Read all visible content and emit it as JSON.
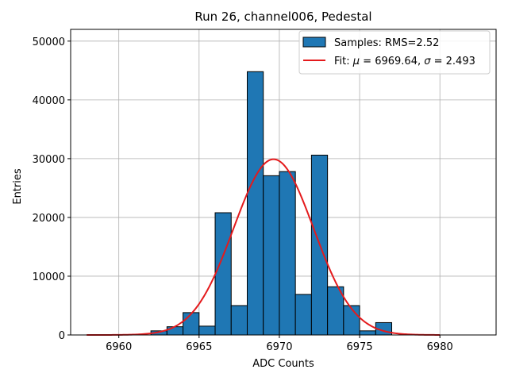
{
  "chart_data": {
    "type": "bar",
    "title": "Run 26, channel006, Pedestal",
    "xlabel": "ADC Counts",
    "ylabel": "Entries",
    "xlim": [
      6957.0,
      6983.5
    ],
    "ylim": [
      0,
      52000
    ],
    "xticks": [
      6960,
      6965,
      6970,
      6975,
      6980
    ],
    "yticks": [
      0,
      10000,
      20000,
      30000,
      40000,
      50000
    ],
    "xtick_labels": [
      "6960",
      "6965",
      "6970",
      "6975",
      "6980"
    ],
    "ytick_labels": [
      "0",
      "10000",
      "20000",
      "30000",
      "40000",
      "50000"
    ],
    "grid": true,
    "legend_position": "top-right",
    "bars": {
      "name": "Samples: RMS=2.52",
      "color": "#1f77b4",
      "bin_width": 1,
      "bins": [
        {
          "x": 6962,
          "value": 700
        },
        {
          "x": 6963,
          "value": 1400
        },
        {
          "x": 6964,
          "value": 3800
        },
        {
          "x": 6965,
          "value": 1500
        },
        {
          "x": 6966,
          "value": 20800
        },
        {
          "x": 6967,
          "value": 5000
        },
        {
          "x": 6968,
          "value": 44800
        },
        {
          "x": 6969,
          "value": 27100
        },
        {
          "x": 6970,
          "value": 27800
        },
        {
          "x": 6971,
          "value": 6900
        },
        {
          "x": 6972,
          "value": 30600
        },
        {
          "x": 6973,
          "value": 8200
        },
        {
          "x": 6974,
          "value": 5000
        },
        {
          "x": 6975,
          "value": 700
        },
        {
          "x": 6976,
          "value": 2100
        }
      ]
    },
    "fit": {
      "name_prefix": "Fit: ",
      "mu_symbol": "μ",
      "mu_text": " = 6969.64, ",
      "sigma_symbol": "σ",
      "sigma_text": " = 2.493",
      "color": "#e41a1c",
      "mu": 6969.64,
      "sigma": 2.493,
      "amplitude": 29900,
      "x_range": [
        6958,
        6980
      ]
    }
  }
}
